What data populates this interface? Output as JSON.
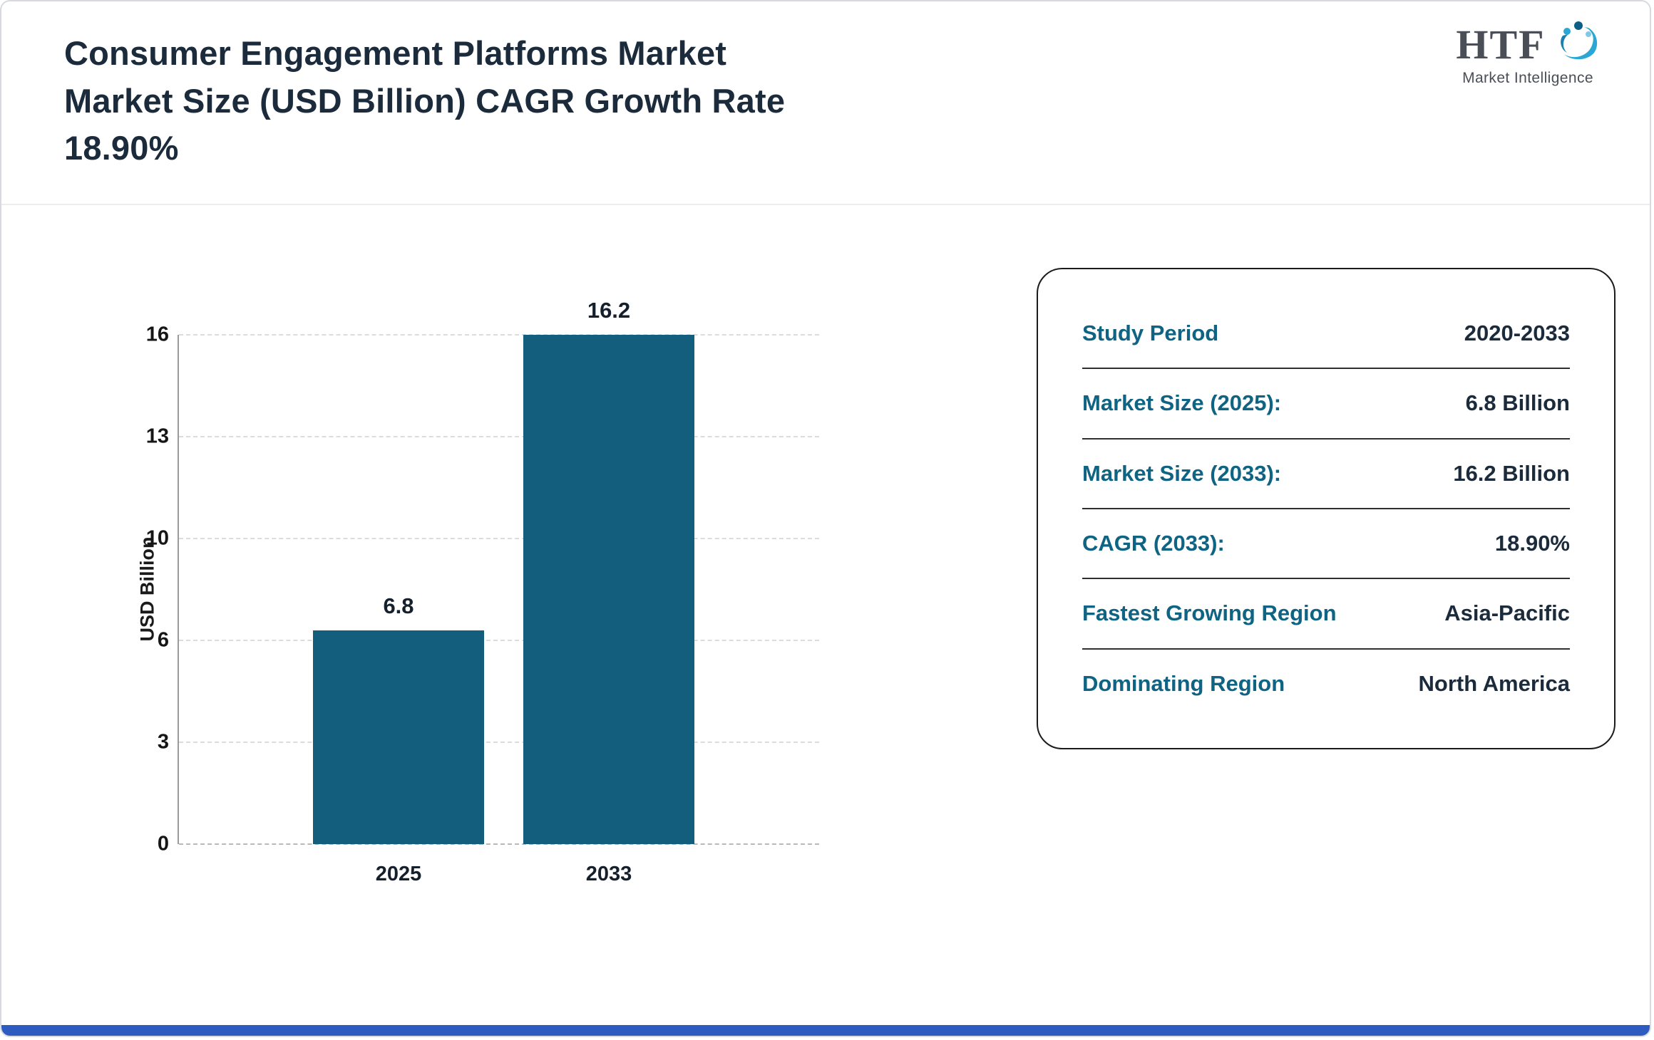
{
  "header": {
    "title": "Consumer Engagement Platforms Market\nMarket Size (USD Billion) CAGR Growth Rate\n18.90%",
    "logo": {
      "text": "HTF",
      "subtext": "Market Intelligence"
    }
  },
  "chart_data": {
    "type": "bar",
    "title": "",
    "categories": [
      "2025",
      "2033"
    ],
    "values": [
      6.8,
      16.2
    ],
    "value_labels": [
      "6.8",
      "16.2"
    ],
    "xlabel": "",
    "ylabel": "USD Billion",
    "ylim": [
      0,
      16.2
    ],
    "tick_labels": [
      "0",
      "3",
      "6",
      "10",
      "13",
      "16"
    ],
    "grid": true,
    "legend": "none",
    "bar_color": "#135e7d"
  },
  "info_card": {
    "rows": [
      {
        "label": "Study Period",
        "value": "2020-2033"
      },
      {
        "label": "Market Size (2025):",
        "value": "6.8 Billion"
      },
      {
        "label": "Market Size (2033):",
        "value": "16.2 Billion"
      },
      {
        "label": "CAGR (2033):",
        "value": "18.90%"
      },
      {
        "label": "Fastest Growing Region",
        "value": "Asia-Pacific"
      },
      {
        "label": "Dominating Region",
        "value": "North America"
      }
    ]
  },
  "colors": {
    "accent_teal": "#0f6383",
    "text_dark": "#1b2b3b",
    "bar": "#135e7d",
    "footer_blue": "#2d5bbf"
  }
}
